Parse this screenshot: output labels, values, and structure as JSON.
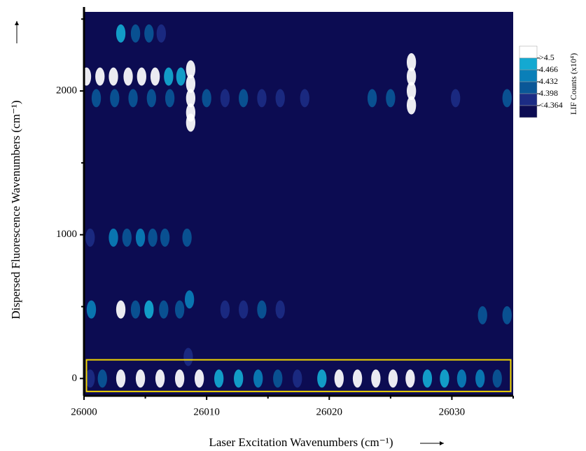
{
  "chart_data": {
    "type": "heatmap",
    "x_label": "Laser Excitation Wavenumbers (cm⁻¹)",
    "y_label": "Dispersed Fluorescence Wavenumbers (cm⁻¹)",
    "colorbar_label": "LIF Counts (x10⁴)",
    "xlim": [
      26000,
      26035
    ],
    "ylim": [
      -120,
      2550
    ],
    "xticks": [
      26000,
      26010,
      26020,
      26030
    ],
    "xminorticks": [
      26005,
      26015,
      26025,
      26035
    ],
    "yticks": [
      0,
      1000,
      2000
    ],
    "yminorticks": [
      500,
      1500,
      2500
    ],
    "levels": [
      {
        "value": 4.5,
        "label": ">4.5"
      },
      4.466,
      4.432,
      4.398,
      {
        "value": 4.364,
        "label": "<4.364"
      }
    ],
    "colors": [
      "#ffffff",
      "#14a9d1",
      "#0a7fb8",
      "#0a5797",
      "#1c2c84",
      "#0c0c52"
    ],
    "highlight": {
      "xlim": [
        26000.2,
        26034.8
      ],
      "ylim": [
        -90,
        130
      ],
      "color": "#f2d600"
    },
    "points": {
      "x": [
        26000.5,
        26001.5,
        26003.0,
        26004.6,
        26006.2,
        26007.8,
        26009.4,
        26011.0,
        26012.6,
        26014.2,
        26015.8,
        26017.4,
        26019.4,
        26020.8,
        26022.3,
        26023.8,
        26025.2,
        26026.6,
        26028.0,
        26029.4,
        26030.8,
        26032.3,
        26033.7,
        26008.5,
        26000.2,
        26001.3,
        26002.4,
        26003.6,
        26004.7,
        26005.8,
        26006.9,
        26007.9,
        26008.7,
        26008.7,
        26008.7,
        26008.7,
        26008.7,
        26026.7,
        26026.7,
        26026.7,
        26026.7,
        26001.0,
        26002.5,
        26004.0,
        26005.5,
        26007.0,
        26010.0,
        26011.5,
        26013.0,
        26014.5,
        26016.0,
        26018.0,
        26023.5,
        26025.0,
        26030.3,
        26034.5,
        26003.0,
        26004.2,
        26005.3,
        26006.3,
        26000.5,
        26002.4,
        26003.5,
        26004.6,
        26005.6,
        26006.6,
        26008.4,
        26000.6,
        26003.0,
        26004.2,
        26005.3,
        26006.5,
        26007.8,
        26008.6,
        26011.5,
        26013.0,
        26014.5,
        26016.0,
        26032.5,
        26034.5
      ],
      "y": [
        0,
        0,
        0,
        0,
        0,
        0,
        0,
        0,
        0,
        0,
        0,
        0,
        0,
        0,
        0,
        0,
        0,
        0,
        0,
        0,
        0,
        0,
        0,
        150,
        2100,
        2100,
        2100,
        2100,
        2100,
        2100,
        2100,
        2100,
        2150,
        2050,
        1950,
        1850,
        1780,
        2200,
        2100,
        2000,
        1900,
        1950,
        1950,
        1950,
        1950,
        1950,
        1950,
        1950,
        1950,
        1950,
        1950,
        1950,
        1950,
        1950,
        1950,
        1950,
        2400,
        2400,
        2400,
        2400,
        980,
        980,
        980,
        980,
        980,
        980,
        980,
        480,
        480,
        480,
        480,
        480,
        480,
        550,
        480,
        480,
        480,
        480,
        440,
        440
      ],
      "values": [
        4.38,
        4.4,
        4.5,
        4.5,
        4.5,
        4.5,
        4.5,
        4.47,
        4.47,
        4.44,
        4.41,
        4.37,
        4.47,
        4.5,
        4.5,
        4.5,
        4.5,
        4.5,
        4.47,
        4.47,
        4.44,
        4.44,
        4.41,
        4.38,
        4.5,
        4.5,
        4.5,
        4.5,
        4.5,
        4.5,
        4.47,
        4.47,
        4.5,
        4.5,
        4.5,
        4.5,
        4.5,
        4.5,
        4.5,
        4.5,
        4.5,
        4.4,
        4.4,
        4.41,
        4.4,
        4.41,
        4.4,
        4.38,
        4.4,
        4.38,
        4.38,
        4.37,
        4.4,
        4.41,
        4.38,
        4.4,
        4.47,
        4.4,
        4.4,
        4.38,
        4.38,
        4.44,
        4.41,
        4.44,
        4.41,
        4.41,
        4.4,
        4.44,
        4.5,
        4.41,
        4.47,
        4.4,
        4.4,
        4.44,
        4.38,
        4.38,
        4.4,
        4.38,
        4.41,
        4.4
      ]
    }
  }
}
